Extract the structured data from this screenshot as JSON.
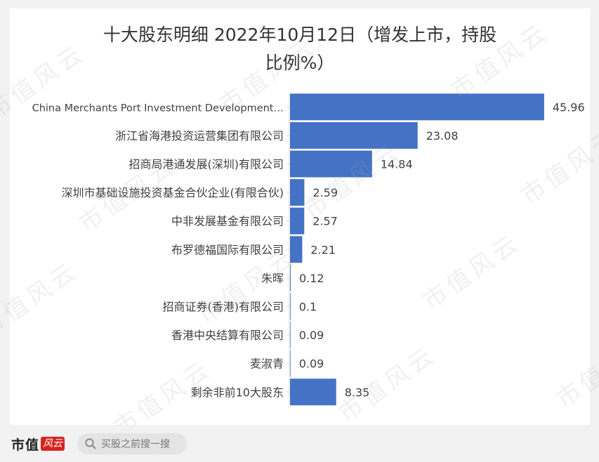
{
  "chart_data": {
    "type": "bar",
    "orientation": "horizontal",
    "title": "十大股东明细 2022年10月12日（增发上市，持股比例%）",
    "title_lines": [
      "十大股东明细 2022年10月12日（增发上市，持股",
      "比例%）"
    ],
    "categories": [
      "China Merchants Port Investment Development…",
      "浙江省海港投资运营集团有限公司",
      "招商局港通发展(深圳)有限公司",
      "深圳市基础设施投资基金合伙企业(有限合伙)",
      "中非发展基金有限公司",
      "布罗德福国际有限公司",
      "朱晖",
      "招商证券(香港)有限公司",
      "香港中央结算有限公司",
      "麦淑青",
      "剩余非前10大股东"
    ],
    "values": [
      45.96,
      23.08,
      14.84,
      2.59,
      2.57,
      2.21,
      0.12,
      0.1,
      0.09,
      0.09,
      8.35
    ],
    "value_labels": [
      "45.96",
      "23.08",
      "14.84",
      "2.59",
      "2.57",
      "2.21",
      "0.12",
      "0.1",
      "0.09",
      "0.09",
      "8.35"
    ],
    "xlim": [
      0,
      47.5
    ],
    "xlabel": "",
    "ylabel": "",
    "grid": false,
    "bar_color": "#4472c4"
  },
  "watermark": "市值风云",
  "footer": {
    "brand": "市值",
    "brand_mark": "风云",
    "search_placeholder": "买股之前搜一搜"
  }
}
